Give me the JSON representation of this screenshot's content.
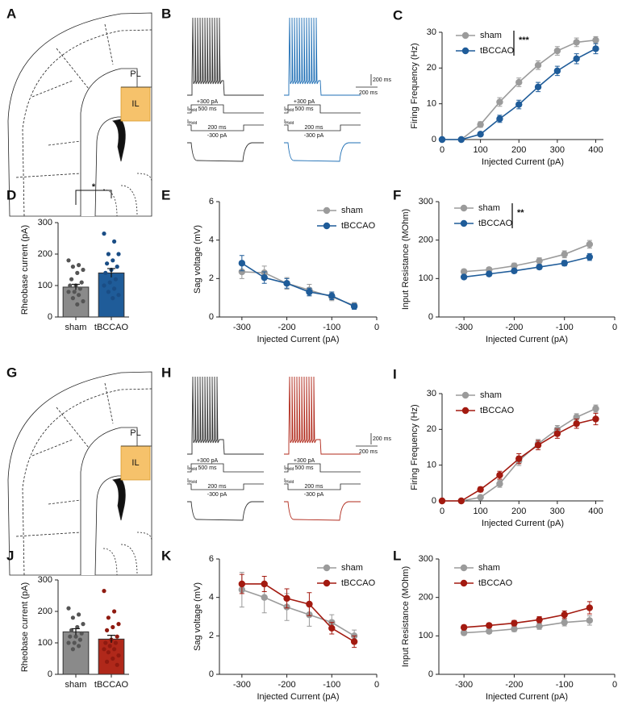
{
  "diagrams": [
    {
      "letter": "A",
      "pl": "PL",
      "il": "IL"
    },
    {
      "letter": "G",
      "pl": "PL",
      "il": "IL"
    }
  ],
  "traces": [
    {
      "letter": "B",
      "colors": [
        "#333333",
        "#1f6fb5"
      ],
      "step_up": "+300 pA",
      "up_duration": "500 ms",
      "down_duration": "200 ms",
      "step_down": "-300 pA",
      "hold": "I",
      "hold_sub": "Hold",
      "scale_v": "200 ms",
      "scale_h": "200 ms"
    },
    {
      "letter": "H",
      "colors": [
        "#333333",
        "#b0281a"
      ],
      "step_up": "+300 pA",
      "up_duration": "500 ms",
      "down_duration": "200 ms",
      "step_down": "-300 pA",
      "hold": "I",
      "hold_sub": "Hold",
      "scale_v": "200 ms",
      "scale_h": "200 ms"
    }
  ],
  "chart_data": [
    {
      "letter": "C",
      "type": "line",
      "x": [
        0,
        50,
        100,
        150,
        200,
        250,
        300,
        350,
        400
      ],
      "series": [
        {
          "name": "sham",
          "color": "#9b9b9b",
          "values": [
            0,
            0,
            4.2,
            10.5,
            16,
            20.8,
            24.8,
            27.2,
            27.8
          ],
          "errors": [
            0.2,
            0.2,
            0.8,
            1.2,
            1.2,
            1.2,
            1.2,
            1.2,
            1
          ]
        },
        {
          "name": "tBCCAO",
          "color": "#1f5c99",
          "values": [
            0,
            0,
            1.5,
            5.8,
            9.8,
            14.7,
            19.2,
            22.6,
            25.4
          ],
          "errors": [
            0.2,
            0.2,
            0.6,
            1,
            1.2,
            1.3,
            1.3,
            1.4,
            1.4
          ]
        }
      ],
      "xlabel": "Injected Current (pA)",
      "ylabel": "Firing Frequency (Hz)",
      "xlim": [
        0,
        420
      ],
      "xticks": [
        0,
        100,
        200,
        300,
        400
      ],
      "ylim": [
        0,
        30
      ],
      "yticks": [
        0,
        10,
        20,
        30
      ],
      "annotation": "***"
    },
    {
      "letter": "D",
      "type": "bar",
      "categories": [
        "sham",
        "tBCCAO"
      ],
      "values": [
        95,
        140
      ],
      "errors": [
        9,
        14
      ],
      "colors": [
        "#8a8a8a",
        "#1f5c99"
      ],
      "point_colors": [
        "#555555",
        "#1a4d85"
      ],
      "points": [
        [
          180,
          165,
          160,
          150,
          140,
          120,
          110,
          100,
          100,
          90,
          80,
          80,
          70,
          60,
          50,
          40
        ],
        [
          265,
          240,
          200,
          200,
          180,
          170,
          160,
          150,
          140,
          120,
          110,
          100,
          90,
          80,
          70,
          60
        ]
      ],
      "ylabel": "Rheobase current (pA)",
      "ylim": [
        0,
        300
      ],
      "yticks": [
        0,
        100,
        200,
        300
      ],
      "annotation": "*"
    },
    {
      "letter": "E",
      "type": "line",
      "x": [
        -300,
        -250,
        -200,
        -150,
        -100,
        -50
      ],
      "series": [
        {
          "name": "sham",
          "color": "#9b9b9b",
          "values": [
            2.35,
            2.3,
            1.75,
            1.4,
            1.05,
            0.6
          ],
          "errors": [
            0.35,
            0.35,
            0.3,
            0.3,
            0.2,
            0.15
          ]
        },
        {
          "name": "tBCCAO",
          "color": "#1f5c99",
          "values": [
            2.8,
            2.05,
            1.75,
            1.3,
            1.1,
            0.55
          ],
          "errors": [
            0.4,
            0.3,
            0.25,
            0.2,
            0.2,
            0.15
          ]
        }
      ],
      "xlabel": "Injected Current (pA)",
      "ylabel": "Sag voltage (mV)",
      "xlim": [
        -350,
        0
      ],
      "xticks": [
        -300,
        -200,
        -100,
        0
      ],
      "ylim": [
        0,
        6
      ],
      "yticks": [
        0,
        2,
        4,
        6
      ]
    },
    {
      "letter": "F",
      "type": "line",
      "x": [
        -300,
        -250,
        -200,
        -150,
        -100,
        -50
      ],
      "series": [
        {
          "name": "sham",
          "color": "#9b9b9b",
          "values": [
            118,
            123,
            133,
            146,
            163,
            189
          ],
          "errors": [
            6,
            6,
            7,
            8,
            9,
            10
          ]
        },
        {
          "name": "tBCCAO",
          "color": "#1f5c99",
          "values": [
            104,
            112,
            120,
            130,
            140,
            156
          ],
          "errors": [
            5,
            5,
            6,
            6,
            7,
            9
          ]
        }
      ],
      "xlabel": "Injected Current (pA)",
      "ylabel": "Input Resistance (MOhm)",
      "xlim": [
        -350,
        0
      ],
      "xticks": [
        -300,
        -200,
        -100,
        0
      ],
      "ylim": [
        0,
        300
      ],
      "yticks": [
        0,
        100,
        200,
        300
      ],
      "annotation": "**"
    },
    {
      "letter": "I",
      "type": "line",
      "x": [
        0,
        50,
        100,
        150,
        200,
        250,
        300,
        350,
        400
      ],
      "series": [
        {
          "name": "sham",
          "color": "#9b9b9b",
          "values": [
            0,
            0,
            1,
            4.8,
            11.2,
            16,
            20,
            23.4,
            25.8
          ],
          "errors": [
            0.2,
            0.2,
            0.5,
            1,
            1.3,
            1.2,
            1.1,
            1,
            1
          ]
        },
        {
          "name": "tBCCAO",
          "color": "#a31a10",
          "values": [
            0,
            0,
            3.2,
            7.2,
            11.8,
            15.6,
            18.8,
            21.6,
            22.9
          ],
          "errors": [
            0.2,
            0.2,
            0.7,
            1.1,
            1.4,
            1.3,
            1.3,
            1.3,
            1.6
          ]
        }
      ],
      "xlabel": "Injected Current (pA)",
      "ylabel": "Firing Frequency (Hz)",
      "xlim": [
        0,
        420
      ],
      "xticks": [
        0,
        100,
        200,
        300,
        400
      ],
      "ylim": [
        0,
        30
      ],
      "yticks": [
        0,
        10,
        20,
        30
      ]
    },
    {
      "letter": "J",
      "type": "bar",
      "categories": [
        "sham",
        "tBCCAO"
      ],
      "values": [
        135,
        112
      ],
      "errors": [
        10,
        12
      ],
      "colors": [
        "#8a8a8a",
        "#b0281a"
      ],
      "point_colors": [
        "#555555",
        "#8f1a10"
      ],
      "points": [
        [
          210,
          190,
          180,
          160,
          150,
          140,
          130,
          120,
          120,
          110,
          100,
          100,
          90,
          80
        ],
        [
          265,
          200,
          180,
          160,
          150,
          140,
          120,
          110,
          100,
          100,
          90,
          80,
          80,
          70,
          60,
          50,
          40,
          30
        ]
      ],
      "ylabel": "Rheobase current (pA)",
      "ylim": [
        0,
        300
      ],
      "yticks": [
        0,
        100,
        200,
        300
      ]
    },
    {
      "letter": "K",
      "type": "line",
      "x": [
        -300,
        -250,
        -200,
        -150,
        -100,
        -50
      ],
      "series": [
        {
          "name": "sham",
          "color": "#9b9b9b",
          "values": [
            4.4,
            4.0,
            3.5,
            3.1,
            2.7,
            2.0
          ],
          "errors": [
            0.9,
            0.8,
            0.7,
            0.6,
            0.4,
            0.3
          ]
        },
        {
          "name": "tBCCAO",
          "color": "#a31a10",
          "values": [
            4.7,
            4.7,
            3.95,
            3.65,
            2.4,
            1.7
          ],
          "errors": [
            0.5,
            0.4,
            0.5,
            0.6,
            0.3,
            0.3
          ]
        }
      ],
      "xlabel": "Injected Current (pA)",
      "ylabel": "Sag voltage (mV)",
      "xlim": [
        -350,
        0
      ],
      "xticks": [
        -300,
        -200,
        -100,
        0
      ],
      "ylim": [
        0,
        6
      ],
      "yticks": [
        0,
        2,
        4,
        6
      ]
    },
    {
      "letter": "L",
      "type": "line",
      "x": [
        -300,
        -250,
        -200,
        -150,
        -100,
        -50
      ],
      "series": [
        {
          "name": "sham",
          "color": "#9b9b9b",
          "values": [
            108,
            112,
            118,
            125,
            135,
            140
          ],
          "errors": [
            6,
            6,
            7,
            8,
            9,
            12
          ]
        },
        {
          "name": "tBCCAO",
          "color": "#a31a10",
          "values": [
            122,
            127,
            133,
            142,
            155,
            173
          ],
          "errors": [
            6,
            6,
            7,
            8,
            10,
            16
          ]
        }
      ],
      "xlabel": "Injected Current (pA)",
      "ylabel": "Input Resistance (MOhm)",
      "xlim": [
        -350,
        0
      ],
      "xticks": [
        -300,
        -200,
        -100,
        0
      ],
      "ylim": [
        0,
        300
      ],
      "yticks": [
        0,
        100,
        200,
        300
      ]
    }
  ]
}
